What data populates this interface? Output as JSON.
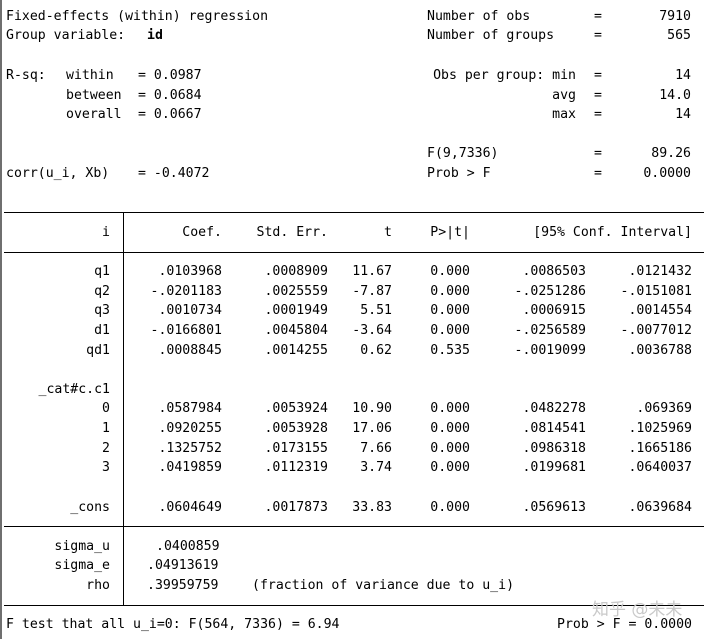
{
  "header": {
    "title": "Fixed-effects (within) regression",
    "group_label": "Group variable:",
    "group_var": "id",
    "nobs_label": "Number of obs",
    "nobs": "7910",
    "ngroups_label": "Number of groups",
    "ngroups": "565",
    "rsq_label": "R-sq:",
    "within_label": "within",
    "within_val": "= 0.0987",
    "between_label": "between",
    "between_val": "= 0.0684",
    "overall_label": "overall",
    "overall_val": "= 0.0667",
    "obs_per_group_label": "Obs per group: min",
    "min": "14",
    "avg_label": "avg",
    "avg": "14.0",
    "max_label": "max",
    "max": "14",
    "f_label": "F(9,7336)",
    "f_val": "89.26",
    "corr_label": "corr(u_i, Xb)",
    "corr_val": "= -0.4072",
    "probf_label": "Prob > F",
    "probf_val": "0.0000",
    "eq": "="
  },
  "table": {
    "columns": [
      "i",
      "Coef.",
      "Std. Err.",
      "t",
      "P>|t|",
      "[95% Conf. Interval]"
    ],
    "rows": [
      {
        "name": "q1",
        "coef": ".0103968",
        "se": ".0008909",
        "t": "11.67",
        "p": "0.000",
        "lo": ".0086503",
        "hi": ".0121432"
      },
      {
        "name": "q2",
        "coef": "-.0201183",
        "se": ".0025559",
        "t": "-7.87",
        "p": "0.000",
        "lo": "-.0251286",
        "hi": "-.0151081"
      },
      {
        "name": "q3",
        "coef": ".0010734",
        "se": ".0001949",
        "t": "5.51",
        "p": "0.000",
        "lo": ".0006915",
        "hi": ".0014554"
      },
      {
        "name": "d1",
        "coef": "-.0166801",
        "se": ".0045804",
        "t": "-3.64",
        "p": "0.000",
        "lo": "-.0256589",
        "hi": "-.0077012"
      },
      {
        "name": "qd1",
        "coef": ".0008845",
        "se": ".0014255",
        "t": "0.62",
        "p": "0.535",
        "lo": "-.0019099",
        "hi": ".0036788"
      }
    ],
    "group_label": "_cat#c.c1",
    "group_rows": [
      {
        "name": "0",
        "coef": ".0587984",
        "se": ".0053924",
        "t": "10.90",
        "p": "0.000",
        "lo": ".0482278",
        "hi": ".069369"
      },
      {
        "name": "1",
        "coef": ".0920255",
        "se": ".0053928",
        "t": "17.06",
        "p": "0.000",
        "lo": ".0814541",
        "hi": ".1025969"
      },
      {
        "name": "2",
        "coef": ".1325752",
        "se": ".0173155",
        "t": "7.66",
        "p": "0.000",
        "lo": ".0986318",
        "hi": ".1665186"
      },
      {
        "name": "3",
        "coef": ".0419859",
        "se": ".0112319",
        "t": "3.74",
        "p": "0.000",
        "lo": ".0199681",
        "hi": ".0640037"
      }
    ],
    "cons": {
      "name": "_cons",
      "coef": ".0604649",
      "se": ".0017873",
      "t": "33.83",
      "p": "0.000",
      "lo": ".0569613",
      "hi": ".0639684"
    }
  },
  "sigma": {
    "sigma_u_label": "sigma_u",
    "sigma_u": ".0400859",
    "sigma_e_label": "sigma_e",
    "sigma_e": ".04913619",
    "rho_label": "rho",
    "rho": ".39959759",
    "rho_note": "(fraction of variance due to u_i)"
  },
  "footer": {
    "ftest": "F test that all u_i=0: F(564, 7336) = 6.94",
    "prob": "Prob > F = 0.0000"
  },
  "watermark": "知乎 @未未"
}
